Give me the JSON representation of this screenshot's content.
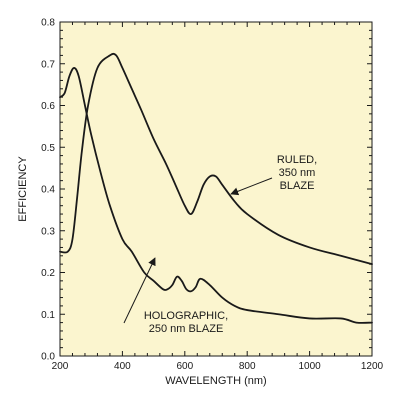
{
  "chart_data": {
    "type": "line",
    "xlabel": "WAVELENGTH (nm)",
    "ylabel": "EFFICIENCY",
    "xlim": [
      200,
      1200
    ],
    "ylim": [
      0,
      0.8
    ],
    "x_ticks": [
      200,
      400,
      600,
      800,
      1000,
      1200
    ],
    "x_tick_labels": [
      "200",
      "400",
      "600",
      "800",
      "1000",
      "1200"
    ],
    "y_ticks": [
      0,
      0.1,
      0.2,
      0.3,
      0.4,
      0.5,
      0.6,
      0.7,
      0.8
    ],
    "y_tick_labels": [
      "0.0",
      "0.1",
      "0.2",
      "0.3",
      "0.4",
      "0.5",
      "0.6",
      "0.7",
      "0.8"
    ],
    "grid": false,
    "background_color": "#fbf5cf",
    "line_color": "#1a1a1a",
    "series": [
      {
        "x": [
          200,
          225,
          240,
          255,
          270,
          290,
          320,
          360,
          380,
          400,
          430,
          460,
          500,
          540,
          570,
          600,
          620,
          640,
          660,
          680,
          700,
          720,
          760,
          800,
          900,
          1000,
          1100,
          1200
        ],
        "y": [
          0.25,
          0.25,
          0.28,
          0.38,
          0.49,
          0.6,
          0.69,
          0.72,
          0.72,
          0.69,
          0.64,
          0.59,
          0.52,
          0.46,
          0.41,
          0.36,
          0.34,
          0.37,
          0.41,
          0.43,
          0.43,
          0.41,
          0.37,
          0.34,
          0.29,
          0.26,
          0.24,
          0.22
        ]
      },
      {
        "x": [
          200,
          215,
          230,
          245,
          260,
          280,
          300,
          330,
          360,
          400,
          430,
          470,
          500,
          530,
          545,
          560,
          575,
          590,
          605,
          620,
          635,
          650,
          680,
          720,
          760,
          800,
          900,
          1000,
          1100,
          1150,
          1200
        ],
        "y": [
          0.62,
          0.63,
          0.67,
          0.69,
          0.67,
          0.6,
          0.53,
          0.44,
          0.36,
          0.28,
          0.25,
          0.2,
          0.18,
          0.16,
          0.16,
          0.17,
          0.19,
          0.18,
          0.16,
          0.155,
          0.165,
          0.185,
          0.17,
          0.14,
          0.12,
          0.11,
          0.1,
          0.09,
          0.09,
          0.08,
          0.08
        ]
      }
    ],
    "annotations": [
      {
        "lines": [
          "RULED,",
          "350 nm",
          "BLAZE"
        ],
        "points_to": [
          720,
          0.39
        ]
      },
      {
        "lines": [
          "HOLOGRAPHIC,",
          "250 nm BLAZE"
        ],
        "points_to": [
          510,
          0.23
        ]
      }
    ]
  }
}
